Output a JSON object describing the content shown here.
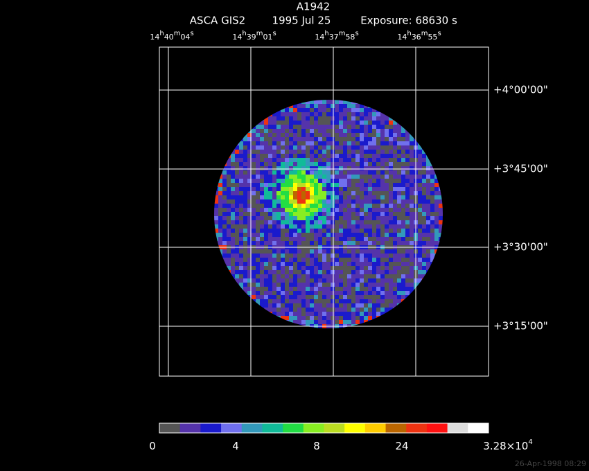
{
  "header": {
    "title": "A1942",
    "instrument": "ASCA GIS2",
    "date": "1995 Jul 25",
    "exposure": "Exposure: 68630 s"
  },
  "ra_labels": [
    [
      "14",
      "h",
      "40",
      "m",
      "04",
      "s"
    ],
    [
      "14",
      "h",
      "39",
      "m",
      "01",
      "s"
    ],
    [
      "14",
      "h",
      "37",
      "m",
      "58",
      "s"
    ],
    [
      "14",
      "h",
      "36",
      "m",
      "55",
      "s"
    ]
  ],
  "dec_labels": [
    "+4°00'00\"",
    "+3°45'00\"",
    "+3°30'00\"",
    "+3°15'00\""
  ],
  "colorbar": {
    "colors": [
      "#555555",
      "#5533aa",
      "#1a1acc",
      "#7070ee",
      "#3399bb",
      "#11bb99",
      "#22dd44",
      "#88ee22",
      "#bbdd22",
      "#ffff00",
      "#ffcc00",
      "#bb6600",
      "#ee3311",
      "#ff1111",
      "#dddddd",
      "#ffffff"
    ],
    "labels": [
      [
        "0"
      ],
      [
        "4"
      ],
      [
        "8"
      ],
      [
        "24"
      ],
      [
        "3.28×10",
        "4"
      ]
    ]
  },
  "timestamp": "26-Apr-1998 08:29"
}
